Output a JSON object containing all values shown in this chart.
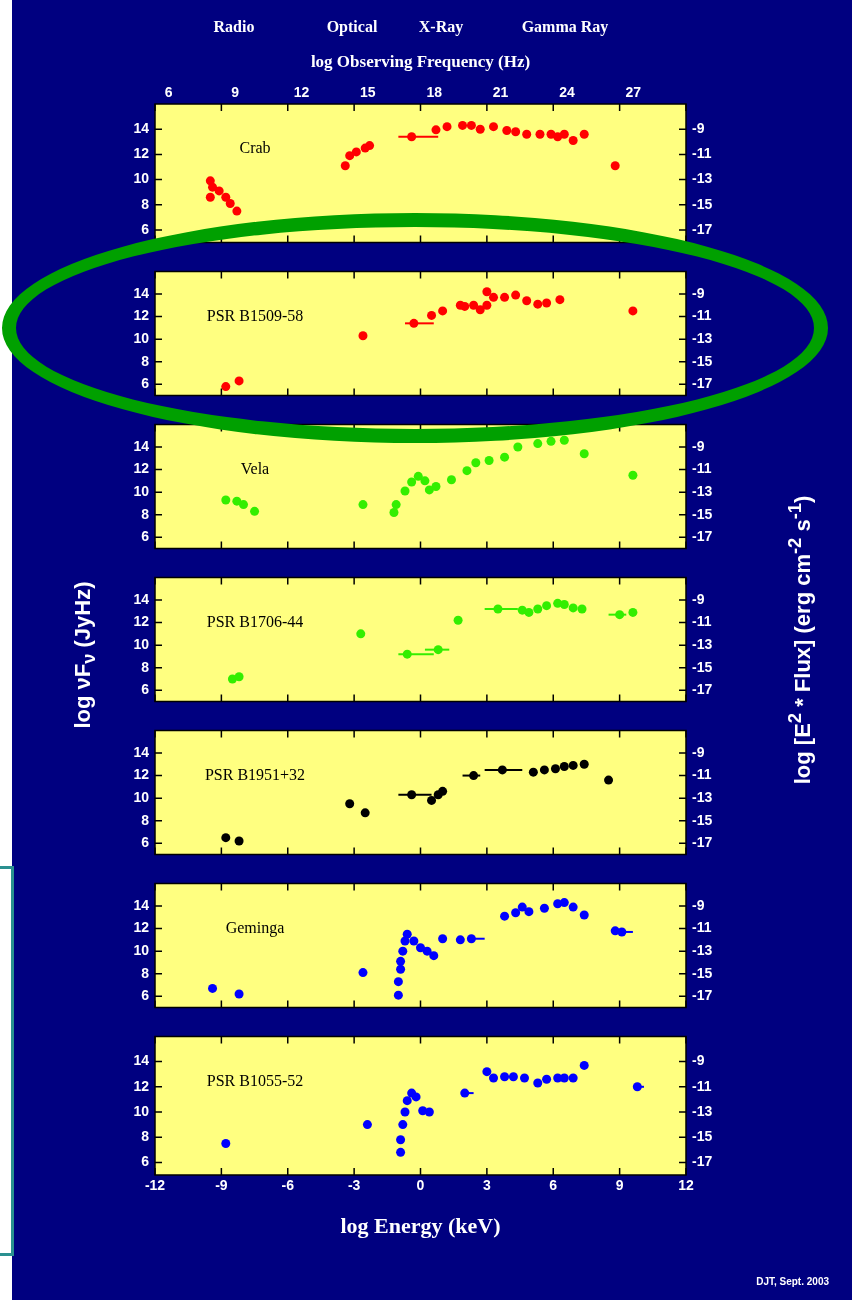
{
  "chart_data": [
    {
      "type": "scatter",
      "title": "Crab",
      "x2label": "log Observing Frequency (Hz)",
      "annotations": [
        "Radio",
        "Optical",
        "X-Ray",
        "Gamma Ray"
      ],
      "marker": "circle",
      "tick_labels": "y",
      "xlim": [
        -12,
        12
      ],
      "xticks": [
        -12,
        -9,
        -6,
        -3,
        0,
        3,
        6,
        9,
        12
      ],
      "x2lim": [
        5.38,
        29.38
      ],
      "x2ticks": [
        6,
        9,
        12,
        15,
        18,
        21,
        24,
        27
      ],
      "ylim": [
        5,
        16
      ],
      "yticks": [
        6,
        8,
        10,
        12,
        14
      ],
      "y2lim": [
        -18,
        -7
      ],
      "y2ticks": [
        -17,
        -15,
        -13,
        -11,
        -9
      ],
      "series": [
        {
          "color": "#ff0000",
          "x": [
            -9.5,
            -9.4,
            -9.5,
            -9.1,
            -8.8,
            -8.6,
            -8.3,
            -3.4,
            -3.2,
            -2.9,
            -2.5,
            -2.3,
            -0.4,
            0.7,
            1.2,
            1.9,
            2.3,
            2.7,
            3.3,
            3.9,
            4.3,
            4.8,
            5.4,
            5.9,
            6.2,
            6.5,
            6.9,
            7.4,
            8.8
          ],
          "values": [
            9.9,
            9.4,
            8.6,
            9.1,
            8.6,
            8.1,
            7.5,
            11.1,
            11.9,
            12.2,
            12.5,
            12.7,
            13.4,
            13.95,
            14.2,
            14.3,
            14.3,
            14.0,
            14.2,
            13.9,
            13.8,
            13.6,
            13.6,
            13.6,
            13.4,
            13.6,
            13.1,
            13.6,
            11.1
          ],
          "xerrors": [
            null,
            null,
            null,
            null,
            null,
            null,
            null,
            null,
            null,
            null,
            null,
            null,
            [
              -1.0,
              0.8
            ],
            null,
            null,
            null,
            null,
            null,
            null,
            null,
            null,
            null,
            null,
            null,
            null,
            null,
            null,
            null,
            null
          ]
        }
      ]
    },
    {
      "type": "scatter",
      "title": "PSR B1509-58",
      "marker": "circle",
      "tick_labels": "y",
      "xlim": [
        -12,
        12
      ],
      "xticks": [
        -12,
        -9,
        -6,
        -3,
        0,
        3,
        6,
        9,
        12
      ],
      "ylim": [
        5,
        16
      ],
      "yticks": [
        6,
        8,
        10,
        12,
        14
      ],
      "y2lim": [
        -18,
        -7
      ],
      "y2ticks": [
        -17,
        -15,
        -13,
        -11,
        -9
      ],
      "series": [
        {
          "color": "#ff0000",
          "x": [
            -8.8,
            -8.2,
            -2.6,
            -0.3,
            0.5,
            1.0,
            1.8,
            2.0,
            2.4,
            2.7,
            3.0,
            3.0,
            3.3,
            3.8,
            4.3,
            4.8,
            5.3,
            5.7,
            6.3,
            9.6
          ],
          "values": [
            5.8,
            6.3,
            10.3,
            11.4,
            12.1,
            12.5,
            13.0,
            12.9,
            13.0,
            12.6,
            14.2,
            13.0,
            13.7,
            13.7,
            13.9,
            13.4,
            13.1,
            13.2,
            13.5,
            12.5
          ],
          "xerrors": [
            null,
            null,
            null,
            [
              -0.7,
              0.6
            ],
            null,
            null,
            null,
            null,
            null,
            null,
            null,
            null,
            null,
            null,
            null,
            null,
            null,
            null,
            null,
            null
          ]
        }
      ]
    },
    {
      "type": "scatter",
      "title": "Vela",
      "marker": "circle",
      "tick_labels": "y",
      "xlim": [
        -12,
        12
      ],
      "xticks": [
        -12,
        -9,
        -6,
        -3,
        0,
        3,
        6,
        9,
        12
      ],
      "ylim": [
        5,
        16
      ],
      "yticks": [
        6,
        8,
        10,
        12,
        14
      ],
      "y2lim": [
        -18,
        -7
      ],
      "y2ticks": [
        -17,
        -15,
        -13,
        -11,
        -9
      ],
      "series": [
        {
          "color": "#33ee00",
          "x": [
            -8.8,
            -8.3,
            -8.0,
            -7.5,
            -2.6,
            -1.2,
            -1.1,
            -0.7,
            -0.4,
            -0.1,
            0.2,
            0.4,
            0.7,
            1.4,
            2.1,
            2.5,
            3.1,
            3.8,
            4.4,
            5.3,
            5.9,
            6.5,
            7.4,
            9.6
          ],
          "values": [
            9.3,
            9.2,
            8.9,
            8.3,
            8.9,
            8.2,
            8.9,
            10.1,
            10.9,
            11.4,
            11.0,
            10.2,
            10.5,
            11.1,
            11.9,
            12.6,
            12.8,
            13.1,
            14.0,
            14.3,
            14.5,
            14.6,
            13.4,
            11.5
          ]
        }
      ]
    },
    {
      "type": "scatter",
      "title": "PSR B1706-44",
      "ylabel": "log νF$_{ν}$ (JyHz)",
      "y2label": "log [E$^{2}$ * Flux] (erg cm$^{-2}$ s$^{-1}$)",
      "marker": "circle",
      "tick_labels": "y",
      "xlim": [
        -12,
        12
      ],
      "xticks": [
        -12,
        -9,
        -6,
        -3,
        0,
        3,
        6,
        9,
        12
      ],
      "ylim": [
        5,
        16
      ],
      "yticks": [
        6,
        8,
        10,
        12,
        14
      ],
      "y2lim": [
        -18,
        -7
      ],
      "y2ticks": [
        -17,
        -15,
        -13,
        -11,
        -9
      ],
      "series": [
        {
          "color": "#33ee00",
          "x": [
            -8.5,
            -8.2,
            -2.7,
            -0.6,
            0.8,
            1.7,
            3.5,
            4.6,
            4.9,
            5.3,
            5.7,
            6.2,
            6.5,
            6.9,
            7.3,
            9.0,
            9.6
          ],
          "values": [
            7.0,
            7.2,
            11.0,
            9.2,
            9.6,
            12.2,
            13.2,
            13.1,
            12.9,
            13.2,
            13.5,
            13.7,
            13.6,
            13.3,
            13.2,
            12.7,
            12.9
          ],
          "xerrors": [
            null,
            null,
            null,
            [
              -1.0,
              0.6
            ],
            [
              0.2,
              1.3
            ],
            null,
            [
              2.9,
              4.4
            ],
            null,
            null,
            null,
            null,
            null,
            null,
            null,
            null,
            [
              8.5,
              9.3
            ],
            null
          ]
        }
      ]
    },
    {
      "type": "scatter",
      "title": "PSR B1951+32",
      "marker": "circle",
      "tick_labels": "y",
      "xlim": [
        -12,
        12
      ],
      "xticks": [
        -12,
        -9,
        -6,
        -3,
        0,
        3,
        6,
        9,
        12
      ],
      "ylim": [
        5,
        16
      ],
      "yticks": [
        6,
        8,
        10,
        12,
        14
      ],
      "y2lim": [
        -18,
        -7
      ],
      "y2ticks": [
        -17,
        -15,
        -13,
        -11,
        -9
      ],
      "series": [
        {
          "color": "#000000",
          "x": [
            -8.8,
            -8.2,
            -3.2,
            -2.5,
            -0.4,
            0.5,
            0.8,
            1.0,
            2.4,
            3.7,
            5.1,
            5.6,
            6.1,
            6.5,
            6.9,
            7.4,
            8.5
          ],
          "values": [
            6.5,
            6.2,
            9.5,
            8.7,
            10.3,
            9.8,
            10.3,
            10.6,
            12.0,
            12.5,
            12.3,
            12.5,
            12.6,
            12.8,
            12.9,
            13.0,
            11.6
          ],
          "xerrors": [
            null,
            null,
            null,
            null,
            [
              -1.0,
              0.5
            ],
            null,
            null,
            null,
            [
              1.9,
              2.7
            ],
            [
              2.9,
              4.6
            ],
            null,
            null,
            null,
            null,
            null,
            null,
            null
          ]
        }
      ]
    },
    {
      "type": "scatter",
      "title": "Geminga",
      "marker": "circle",
      "tick_labels": "y",
      "xlim": [
        -12,
        12
      ],
      "xticks": [
        -12,
        -9,
        -6,
        -3,
        0,
        3,
        6,
        9,
        12
      ],
      "ylim": [
        5,
        16
      ],
      "yticks": [
        6,
        8,
        10,
        12,
        14
      ],
      "y2lim": [
        -18,
        -7
      ],
      "y2ticks": [
        -17,
        -15,
        -13,
        -11,
        -9
      ],
      "series": [
        {
          "color": "#0000ff",
          "x": [
            -9.4,
            -8.2,
            -2.6,
            -1.0,
            -1.0,
            -0.9,
            -0.9,
            -0.8,
            -0.7,
            -0.6,
            -0.3,
            0.0,
            0.3,
            0.6,
            1.0,
            1.8,
            2.3,
            3.8,
            4.3,
            4.6,
            4.9,
            5.6,
            6.2,
            6.5,
            6.9,
            7.4,
            8.8,
            9.1
          ],
          "values": [
            6.7,
            6.2,
            8.1,
            6.1,
            7.3,
            8.4,
            9.1,
            10.0,
            10.9,
            11.5,
            10.9,
            10.3,
            10.0,
            9.6,
            11.1,
            11.0,
            11.1,
            13.1,
            13.4,
            13.9,
            13.5,
            13.8,
            14.2,
            14.3,
            13.9,
            13.2,
            11.8,
            11.7
          ],
          "xerrors": [
            null,
            null,
            null,
            null,
            null,
            null,
            null,
            null,
            null,
            null,
            null,
            null,
            null,
            null,
            null,
            null,
            [
              2.3,
              2.9
            ],
            null,
            null,
            null,
            null,
            null,
            null,
            null,
            null,
            null,
            null,
            [
              9.1,
              9.6
            ]
          ]
        }
      ]
    },
    {
      "type": "scatter",
      "title": "PSR B1055-52",
      "xlabel": "log Energy (keV)",
      "annotations": [
        "DJT, Sept. 2003"
      ],
      "marker": "circle",
      "xlim": [
        -12,
        12
      ],
      "xticks": [
        -12,
        -9,
        -6,
        -3,
        0,
        3,
        6,
        9,
        12
      ],
      "ylim": [
        5,
        16
      ],
      "yticks": [
        6,
        8,
        10,
        12,
        14
      ],
      "y2lim": [
        -18,
        -7
      ],
      "y2ticks": [
        -17,
        -15,
        -13,
        -11,
        -9
      ],
      "series": [
        {
          "color": "#0000ff",
          "x": [
            -8.8,
            -2.4,
            -0.9,
            -0.9,
            -0.8,
            -0.7,
            -0.6,
            -0.4,
            -0.2,
            0.1,
            0.4,
            2.0,
            3.0,
            3.3,
            3.8,
            4.2,
            4.7,
            5.3,
            5.7,
            6.2,
            6.5,
            6.9,
            7.4,
            9.8
          ],
          "values": [
            7.5,
            9.0,
            6.8,
            7.8,
            9.0,
            10.0,
            10.9,
            11.5,
            11.2,
            10.1,
            10.0,
            11.5,
            13.2,
            12.7,
            12.8,
            12.8,
            12.7,
            12.3,
            12.6,
            12.7,
            12.7,
            12.7,
            13.7,
            12.0
          ],
          "xerrors": [
            null,
            null,
            null,
            null,
            null,
            null,
            null,
            null,
            null,
            null,
            null,
            [
              2.0,
              2.4
            ],
            null,
            null,
            null,
            null,
            null,
            null,
            null,
            null,
            null,
            null,
            null,
            [
              9.8,
              10.1
            ]
          ]
        }
      ]
    }
  ]
}
